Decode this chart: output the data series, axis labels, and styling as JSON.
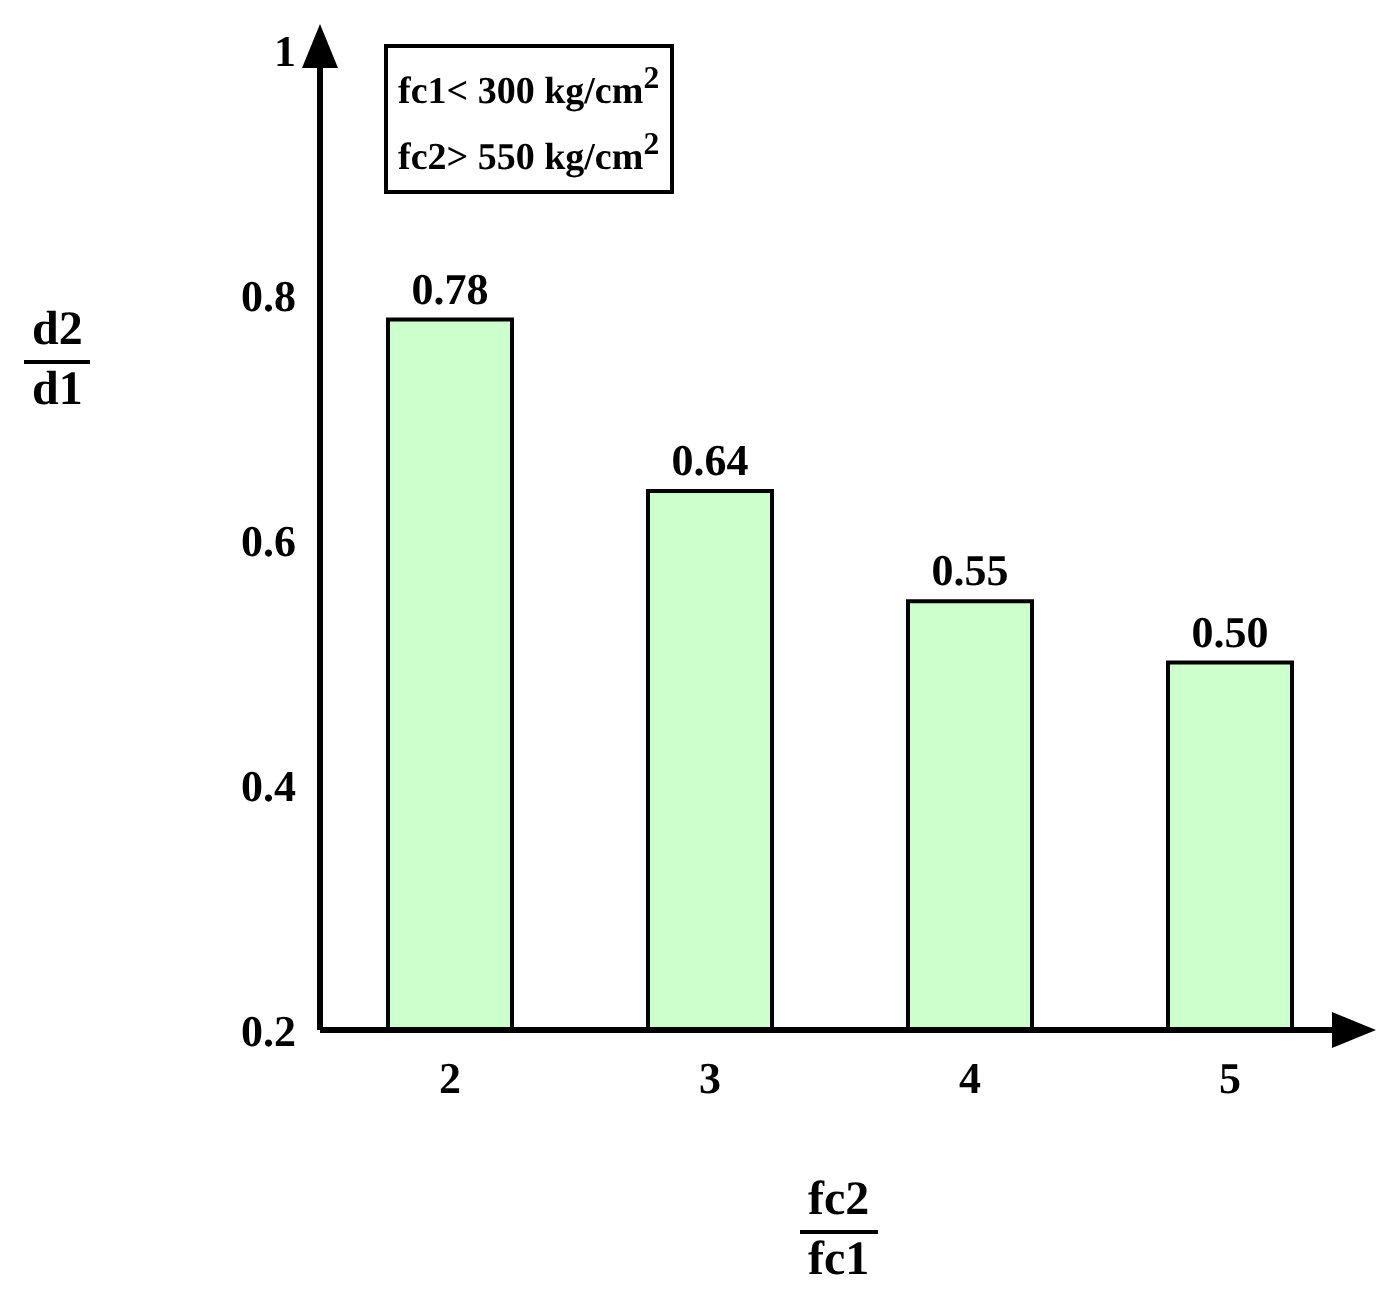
{
  "chart_data": {
    "type": "bar",
    "xlabel": "fc2\nfc1",
    "ylabel": "d2\nd1",
    "categories": [
      "2",
      "3",
      "4",
      "5"
    ],
    "values": [
      0.78,
      0.64,
      0.55,
      0.5
    ],
    "color": "#ccffcc",
    "value_labels": [
      "0.78",
      "0.64",
      "0.55",
      "0.50"
    ],
    "ylim": [
      0.2,
      1
    ],
    "yticks": [
      0.2,
      0.4,
      0.6,
      0.8,
      1
    ],
    "grid": false,
    "annotations": [
      "fc1< 300 kg/cm$^{2}$",
      "fc2> 550 kg/cm$^{2}$"
    ]
  }
}
